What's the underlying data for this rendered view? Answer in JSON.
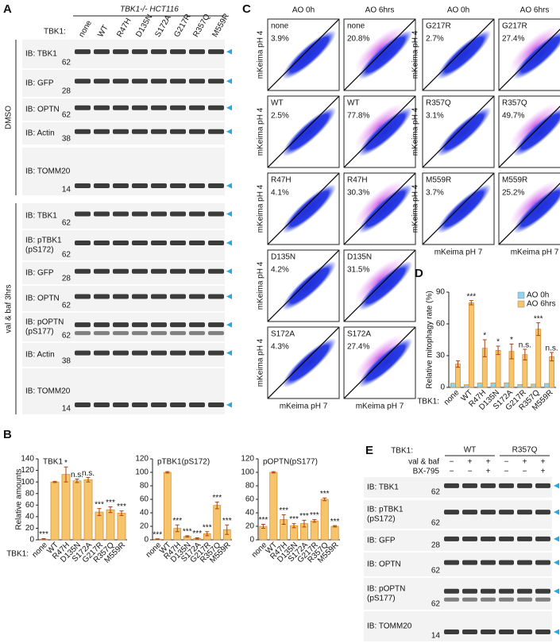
{
  "panel_labels": [
    "A",
    "B",
    "C",
    "D",
    "E"
  ],
  "panel_a": {
    "header": "TBK1-/- HCT116",
    "lane_title": "TBK1:",
    "lanes": [
      "none",
      "WT",
      "R47H",
      "D135N",
      "S172A",
      "G217R",
      "R357Q",
      "M559R"
    ],
    "groups": [
      {
        "label": "DMSO",
        "blots": [
          {
            "label": [
              "IB: TBK1"
            ],
            "marker": "62"
          },
          {
            "label": [
              "IB: GFP"
            ],
            "marker": "28"
          },
          {
            "label": [
              "IB: OPTN"
            ],
            "marker": "62"
          },
          {
            "label": [
              "IB: Actin"
            ],
            "marker": "38"
          },
          {
            "label": [
              "IB: TOMM20"
            ],
            "marker": "14"
          }
        ]
      },
      {
        "label": "val & baf 3hrs",
        "blots": [
          {
            "label": [
              "IB: TBK1"
            ],
            "marker": "62"
          },
          {
            "label": [
              "IB: pTBK1",
              "(pS172)"
            ],
            "marker": "62"
          },
          {
            "label": [
              "IB: GFP"
            ],
            "marker": "28"
          },
          {
            "label": [
              "IB: OPTN"
            ],
            "marker": "62"
          },
          {
            "label": [
              "IB: pOPTN",
              "(pS177)"
            ],
            "marker": "62"
          },
          {
            "label": [
              "IB: Actin"
            ],
            "marker": "38"
          },
          {
            "label": [
              "IB: TOMM20"
            ],
            "marker": "14"
          }
        ]
      }
    ]
  },
  "panel_c": {
    "columns": [
      "AO 0h",
      "AO 6hrs",
      "AO 0h",
      "AO 6hrs"
    ],
    "y_label": "mKeima pH 4",
    "x_label": "mKeima pH 7",
    "plots": [
      {
        "label": "none",
        "pct": "3.9%"
      },
      {
        "label": "none",
        "pct": "20.8%"
      },
      {
        "label": "WT",
        "pct": "2.5%"
      },
      {
        "label": "WT",
        "pct": "77.8%"
      },
      {
        "label": "R47H",
        "pct": "4.1%"
      },
      {
        "label": "R47H",
        "pct": "30.3%"
      },
      {
        "label": "D135N",
        "pct": "4.2%"
      },
      {
        "label": "D135N",
        "pct": "31.5%"
      },
      {
        "label": "S172A",
        "pct": "4.3%"
      },
      {
        "label": "S172A",
        "pct": "27.4%"
      },
      {
        "label": "G217R",
        "pct": "2.7%"
      },
      {
        "label": "G217R",
        "pct": "27.4%"
      },
      {
        "label": "R357Q",
        "pct": "3.1%"
      },
      {
        "label": "R357Q",
        "pct": "49.7%"
      },
      {
        "label": "M559R",
        "pct": "3.7%"
      },
      {
        "label": "M559R",
        "pct": "25.2%"
      }
    ]
  },
  "panel_e": {
    "lane_title": "TBK1:",
    "groups": [
      "WT",
      "R357Q"
    ],
    "conditions": [
      {
        "label": "val & baf",
        "signs": [
          "−",
          "+",
          "+",
          "−",
          "+",
          "+"
        ]
      },
      {
        "label": "BX-795",
        "signs": [
          "−",
          "−",
          "+",
          "−",
          "−",
          "+"
        ]
      }
    ],
    "blots": [
      {
        "label": [
          "IB: TBK1"
        ],
        "marker": "62"
      },
      {
        "label": [
          "IB: pTBK1",
          "(pS172)"
        ],
        "marker": "62"
      },
      {
        "label": [
          "IB: GFP"
        ],
        "marker": "28"
      },
      {
        "label": [
          "IB: OPTN"
        ],
        "marker": "62"
      },
      {
        "label": [
          "IB: pOPTN",
          "(pS177)"
        ],
        "marker": "62"
      },
      {
        "label": [
          "IB: TOMM20"
        ],
        "marker": "14"
      }
    ]
  },
  "chart_data": [
    {
      "type": "bar",
      "title": "TBK1",
      "y_label": "Relative amounts",
      "x_prefix": "TBK1:",
      "categories": [
        "none",
        "WT",
        "R47H",
        "D135N",
        "S172A",
        "G217R",
        "R357Q",
        "M559R"
      ],
      "values": [
        1,
        100,
        113,
        102,
        104,
        48,
        52,
        46
      ],
      "errors": [
        1,
        1,
        13,
        3,
        4,
        6,
        5,
        4
      ],
      "significance": [
        "***",
        null,
        "*",
        "n.s.",
        "n.s.",
        "***",
        "***",
        "***"
      ],
      "color": "#f6c46a",
      "ylim": [
        0,
        140
      ],
      "yticks": [
        0,
        20,
        40,
        60,
        80,
        100,
        120,
        140
      ]
    },
    {
      "type": "bar",
      "title": "pTBK1(pS172)",
      "categories": [
        "none",
        "WT",
        "R47H",
        "D135N",
        "S172A",
        "G217R",
        "R357Q",
        "M559R"
      ],
      "values": [
        1,
        100,
        17,
        5,
        2,
        9,
        51,
        15
      ],
      "errors": [
        0.5,
        1,
        5,
        1,
        1,
        3,
        5,
        7
      ],
      "significance": [
        "***",
        null,
        "***",
        "***",
        "***",
        "***",
        "***",
        "***"
      ],
      "color": "#f6c46a",
      "ylim": [
        0,
        120
      ],
      "yticks": [
        0,
        20,
        40,
        60,
        80,
        100,
        120
      ]
    },
    {
      "type": "bar",
      "title": "pOPTN(pS177)",
      "categories": [
        "none",
        "WT",
        "R47H",
        "D135N",
        "S172A",
        "G217R",
        "R357Q",
        "M559R"
      ],
      "values": [
        20,
        100,
        30,
        21,
        24,
        28,
        60,
        20
      ],
      "errors": [
        3,
        1,
        7,
        3,
        5,
        2,
        2,
        1
      ],
      "significance": [
        "***",
        null,
        "***",
        "***",
        "***",
        "***",
        "***",
        "***"
      ],
      "color": "#f6c46a",
      "ylim": [
        0,
        120
      ],
      "yticks": [
        0,
        20,
        40,
        60,
        80,
        100,
        120
      ]
    },
    {
      "type": "bar",
      "y_label": "Relative mitophagy rate (%)",
      "x_prefix": "TBK1:",
      "legend": "upper right",
      "categories": [
        "none",
        "WT",
        "R47H",
        "D135N",
        "S172A",
        "G217R",
        "R357Q",
        "M559R"
      ],
      "series": [
        {
          "name": "AO 0h",
          "color": "#8fd3ee",
          "values": [
            3.9,
            2.5,
            4.1,
            4.2,
            4.3,
            2.7,
            3.1,
            3.7
          ]
        },
        {
          "name": "AO 6hrs",
          "color": "#f6c46a",
          "values": [
            22,
            80,
            37,
            35,
            34,
            31,
            55,
            29
          ],
          "errors": [
            3,
            2,
            8,
            4,
            7,
            5,
            6,
            4
          ],
          "significance": [
            null,
            "***",
            "*",
            "*",
            "*",
            "n.s.",
            "***",
            "n.s."
          ]
        }
      ],
      "ylim": [
        0,
        90
      ],
      "yticks": [
        0,
        30,
        60,
        90
      ]
    }
  ]
}
